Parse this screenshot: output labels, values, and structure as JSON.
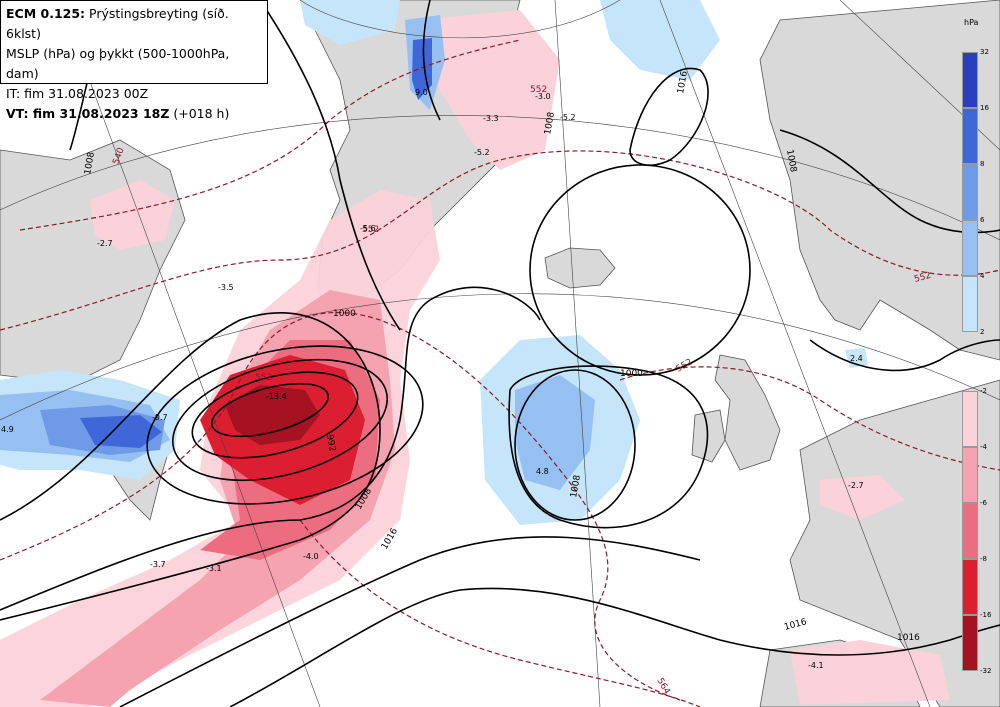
{
  "header": {
    "model": "ECM 0.125:",
    "title_rest": " Prýstingsbreyting (síð. 6klst)",
    "line2": "MSLP (hPa) og þykkt (500-1000hPa, dam)",
    "line3": "IT: fim 31.08.2023 00Z",
    "line4_bold": "VT: fim 31.08.2023 18Z",
    "line4_rest": " (+018 h)"
  },
  "colorbar": {
    "unit": "hPa",
    "positive": [
      {
        "label": "32",
        "color": "#2a3fc0"
      },
      {
        "label": "16",
        "color": "#3f67d8"
      },
      {
        "label": "8",
        "color": "#6e9ae8"
      },
      {
        "label": "6",
        "color": "#96c0f2"
      },
      {
        "label": "4",
        "color": "#c5e5fb"
      },
      {
        "label": "2",
        "color": ""
      }
    ],
    "negative": [
      {
        "label": "-2",
        "color": "#fbd2da"
      },
      {
        "label": "-4",
        "color": "#f5a3b1"
      },
      {
        "label": "-6",
        "color": "#ec6d80"
      },
      {
        "label": "-8",
        "color": "#dc1f30"
      },
      {
        "label": "-16",
        "color": "#a51222"
      },
      {
        "label": "-32",
        "color": ""
      }
    ]
  },
  "colors": {
    "land": "#d9d9d9",
    "sea": "#ffffff",
    "isobar": "#000000",
    "thickness": "#8b1a2a",
    "fall1": "#fbd2da",
    "fall2": "#f5a3b1",
    "fall3": "#ec6d80",
    "fall4": "#dc1f30",
    "fall5": "#a51222",
    "rise1": "#c5e5fb",
    "rise2": "#96c0f2",
    "rise3": "#6e9ae8",
    "rise4": "#3f67d8"
  },
  "isobar_labels": [
    "1016",
    "1008",
    "1000",
    "1008",
    "1008",
    "1000",
    "992",
    "1008",
    "1016",
    "1016",
    "1016",
    "1008"
  ],
  "thickness_labels": [
    "540",
    "552",
    "552",
    "552",
    "552",
    "564",
    "552"
  ],
  "tendency_values": [
    "-2.7",
    "-3.5",
    "-9.7",
    "4.9",
    "-13.4",
    "-3.7",
    "-3.1",
    "-4.0",
    "9.0",
    "-3.3",
    "-3.0",
    "-5.2",
    "-5.6",
    "4.8",
    "2.4",
    "-2.7",
    "-4.1",
    "-5.2"
  ]
}
